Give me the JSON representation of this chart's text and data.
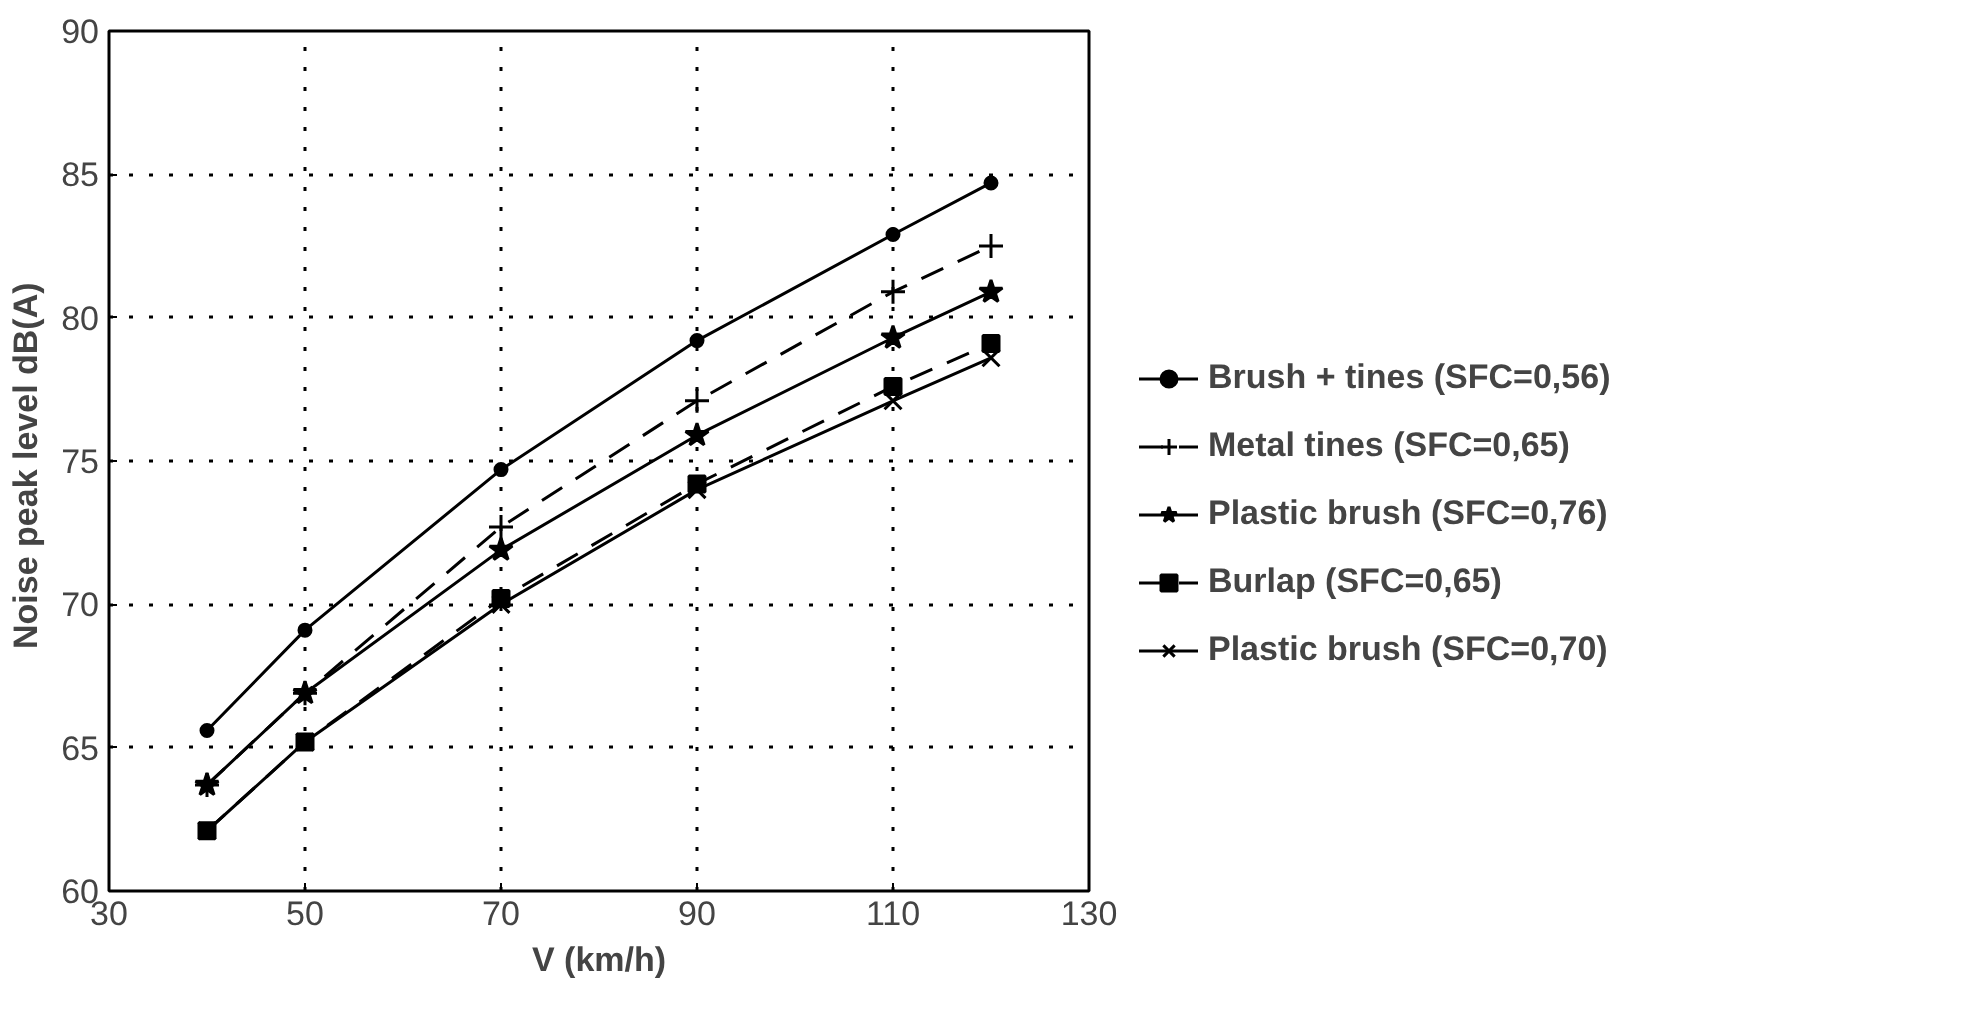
{
  "chart_data": {
    "type": "line",
    "xlabel": "V (km/h)",
    "ylabel": "Noise peak level  dB(A)",
    "x": [
      40,
      50,
      70,
      90,
      110,
      120
    ],
    "series": [
      {
        "name": "Brush + tines (SFC=0,56)",
        "color": "#000000",
        "marker": "circle",
        "line_style": "solid",
        "values": [
          65.6,
          69.1,
          74.7,
          79.2,
          82.9,
          84.7
        ]
      },
      {
        "name": "Metal tines (SFC=0,65)",
        "color": "#000000",
        "marker": "cross",
        "line_style": "dashed",
        "values": [
          63.7,
          66.9,
          72.7,
          77.1,
          80.9,
          82.5
        ]
      },
      {
        "name": "Plastic brush (SFC=0,76)",
        "color": "#000000",
        "marker": "star",
        "line_style": "solid",
        "values": [
          63.7,
          66.9,
          71.9,
          75.9,
          79.3,
          80.9
        ]
      },
      {
        "name": "Burlap (SFC=0,65)",
        "color": "#000000",
        "marker": "square",
        "line_style": "dashed",
        "values": [
          62.1,
          65.2,
          70.2,
          74.2,
          77.6,
          79.1
        ]
      },
      {
        "name": "Plastic brush (SFC=0,70)",
        "color": "#000000",
        "marker": "x",
        "line_style": "solid",
        "values": [
          62.1,
          65.2,
          70.0,
          74.0,
          77.1,
          78.6
        ]
      }
    ],
    "xlim": [
      30,
      130
    ],
    "xticks": [
      30,
      50,
      70,
      90,
      110,
      130
    ],
    "ylim": [
      60,
      90
    ],
    "yticks": [
      60,
      65,
      70,
      75,
      80,
      85,
      90
    ],
    "grid": true,
    "legend": "right"
  }
}
